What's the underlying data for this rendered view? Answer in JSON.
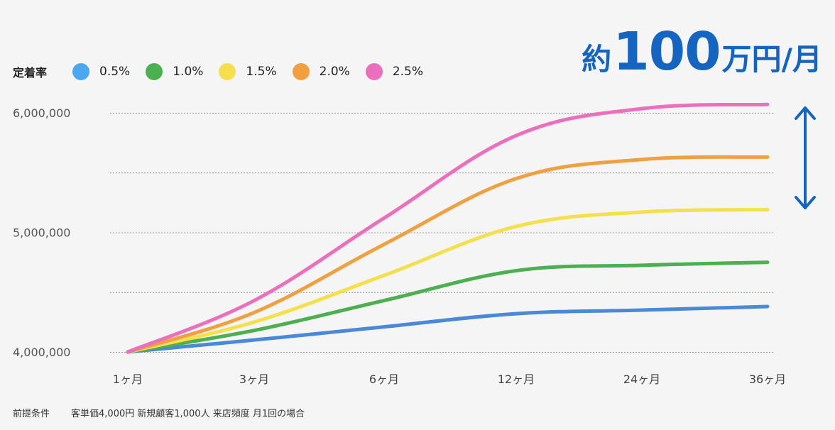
{
  "chart_data": {
    "type": "line",
    "title": "",
    "legend_title": "定着率",
    "categories": [
      "1ヶ月",
      "3ヶ月",
      "6ヶ月",
      "12ヶ月",
      "24ヶ月",
      "36ヶ月"
    ],
    "ylim": [
      4000000,
      6000000
    ],
    "yticks": [
      "6,000,000",
      "5,000,000",
      "4,000,000"
    ],
    "ytick_values": [
      6000000,
      5000000,
      4000000
    ],
    "grid": true,
    "series": [
      {
        "name": "0.5%",
        "color": "#4a88d8",
        "legend_color": "#4aa8f0",
        "values": [
          4000000,
          4100000,
          4210000,
          4320000,
          4350000,
          4380000
        ]
      },
      {
        "name": "1.0%",
        "color": "#4caf50",
        "legend_color": "#4caf50",
        "values": [
          4000000,
          4180000,
          4430000,
          4680000,
          4725000,
          4750000
        ]
      },
      {
        "name": "1.5%",
        "color": "#f4e04d",
        "legend_color": "#f4e04d",
        "values": [
          4000000,
          4250000,
          4640000,
          5050000,
          5170000,
          5190000
        ]
      },
      {
        "name": "2.0%",
        "color": "#f0a040",
        "legend_color": "#f0a040",
        "values": [
          4000000,
          4330000,
          4900000,
          5450000,
          5610000,
          5630000
        ]
      },
      {
        "name": "2.5%",
        "color": "#ec6fbd",
        "legend_color": "#ec6fbd",
        "values": [
          4000000,
          4430000,
          5120000,
          5810000,
          6035000,
          6070000
        ]
      }
    ],
    "annotation": {
      "pre": "約",
      "value": "100",
      "post": "万円/月",
      "arrow": "double-arrow-icon",
      "color": "#1565c0"
    }
  },
  "footnote": {
    "label": "前提条件",
    "text": "客単価4,000円  新規顧客1,000人  来店頻度 月1回の場合"
  }
}
